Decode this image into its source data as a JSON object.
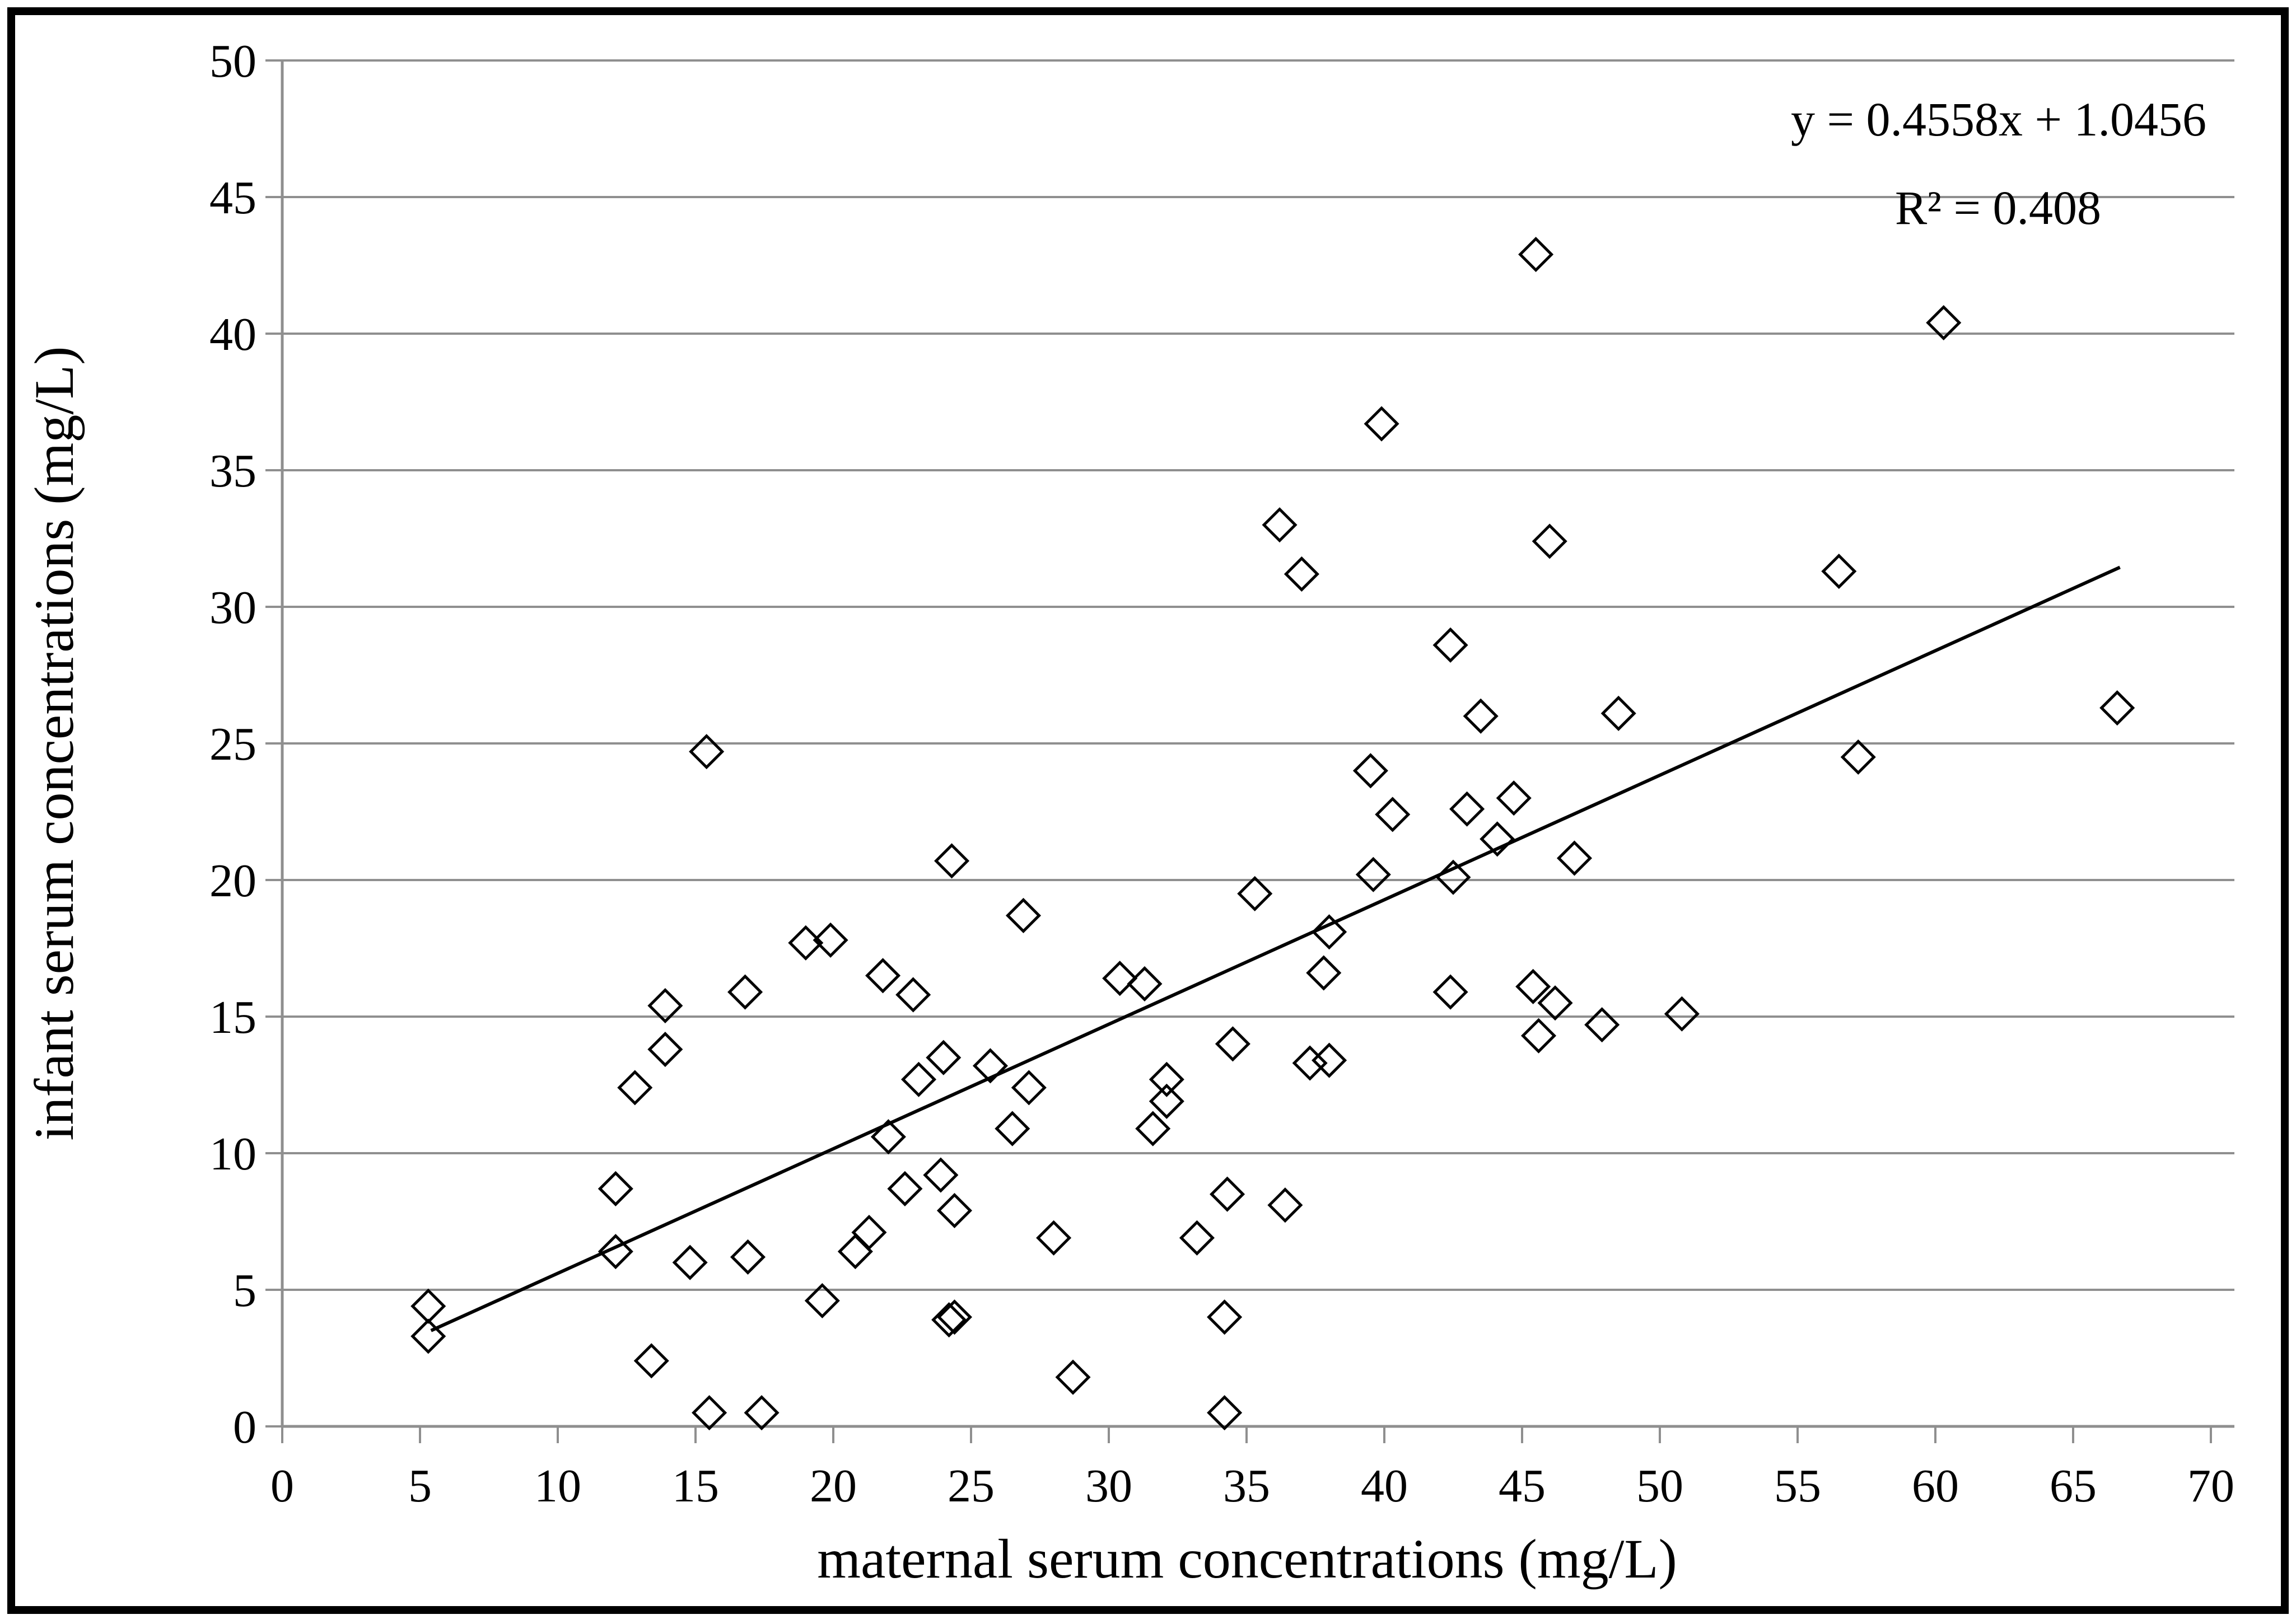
{
  "chart_data": {
    "type": "scatter",
    "title": "",
    "xlabel": "maternal serum concentrations (mg/L)",
    "ylabel": "infant serum concentrations (mg/L)",
    "xlim": [
      0,
      70
    ],
    "ylim": [
      0,
      50
    ],
    "x_ticks": [
      0,
      5,
      10,
      15,
      20,
      25,
      30,
      35,
      40,
      45,
      50,
      55,
      60,
      65,
      70
    ],
    "y_ticks": [
      0,
      5,
      10,
      15,
      20,
      25,
      30,
      35,
      40,
      45,
      50
    ],
    "grid": "horizontal-gridlines-on",
    "legend_position": "none",
    "marker": "open-diamond",
    "equation_label": "y = 0.4558x + 1.0456",
    "r2_label": "R² = 0.408",
    "trendline": {
      "slope": 0.4558,
      "intercept": 1.0456,
      "x_start": 5.4,
      "x_end": 66.7
    },
    "points": [
      [
        5.3,
        4.4
      ],
      [
        5.3,
        3.3
      ],
      [
        12.1,
        8.7
      ],
      [
        12.1,
        6.4
      ],
      [
        12.8,
        12.4
      ],
      [
        13.4,
        2.4
      ],
      [
        13.9,
        15.4
      ],
      [
        13.9,
        13.8
      ],
      [
        14.8,
        6.0
      ],
      [
        15.4,
        24.7
      ],
      [
        15.5,
        0.5
      ],
      [
        16.8,
        15.9
      ],
      [
        16.9,
        6.2
      ],
      [
        17.4,
        0.5
      ],
      [
        19.0,
        17.7
      ],
      [
        19.9,
        17.8
      ],
      [
        19.6,
        4.6
      ],
      [
        20.8,
        6.4
      ],
      [
        21.3,
        7.1
      ],
      [
        21.8,
        16.5
      ],
      [
        22.0,
        10.6
      ],
      [
        22.6,
        8.7
      ],
      [
        22.9,
        15.8
      ],
      [
        23.1,
        12.7
      ],
      [
        23.9,
        9.2
      ],
      [
        24.0,
        13.5
      ],
      [
        24.2,
        3.9
      ],
      [
        24.4,
        4.0
      ],
      [
        24.4,
        7.9
      ],
      [
        24.3,
        20.7
      ],
      [
        25.7,
        13.2
      ],
      [
        26.5,
        10.9
      ],
      [
        26.9,
        18.7
      ],
      [
        27.1,
        12.4
      ],
      [
        28.0,
        6.9
      ],
      [
        28.7,
        1.8
      ],
      [
        30.4,
        16.4
      ],
      [
        31.3,
        16.2
      ],
      [
        31.6,
        10.9
      ],
      [
        32.1,
        12.7
      ],
      [
        32.1,
        11.9
      ],
      [
        33.2,
        6.9
      ],
      [
        34.2,
        4.0
      ],
      [
        34.2,
        0.5
      ],
      [
        34.3,
        8.5
      ],
      [
        34.5,
        14.0
      ],
      [
        35.3,
        19.5
      ],
      [
        36.2,
        33.0
      ],
      [
        36.4,
        8.1
      ],
      [
        37.0,
        31.2
      ],
      [
        37.3,
        13.3
      ],
      [
        37.8,
        16.6
      ],
      [
        38.0,
        13.4
      ],
      [
        38.0,
        18.1
      ],
      [
        39.5,
        24.0
      ],
      [
        39.6,
        20.2
      ],
      [
        39.9,
        36.7
      ],
      [
        40.3,
        22.4
      ],
      [
        42.4,
        15.9
      ],
      [
        42.4,
        28.6
      ],
      [
        42.5,
        20.1
      ],
      [
        43.0,
        22.6
      ],
      [
        43.5,
        26.0
      ],
      [
        44.1,
        21.5
      ],
      [
        44.7,
        23.0
      ],
      [
        45.4,
        16.1
      ],
      [
        45.5,
        42.9
      ],
      [
        45.6,
        14.3
      ],
      [
        46.0,
        32.4
      ],
      [
        46.2,
        15.5
      ],
      [
        46.9,
        20.8
      ],
      [
        47.9,
        14.7
      ],
      [
        48.5,
        26.1
      ],
      [
        50.8,
        15.1
      ],
      [
        56.5,
        31.3
      ],
      [
        57.2,
        24.5
      ],
      [
        60.3,
        40.4
      ],
      [
        66.6,
        26.3
      ]
    ],
    "colors": {
      "marker": "#000000",
      "trendline": "#000000",
      "gridline": "#8f8f8f",
      "axis": "#8f8f8f",
      "text": "#000000",
      "border": "#000000",
      "background": "#ffffff"
    }
  }
}
